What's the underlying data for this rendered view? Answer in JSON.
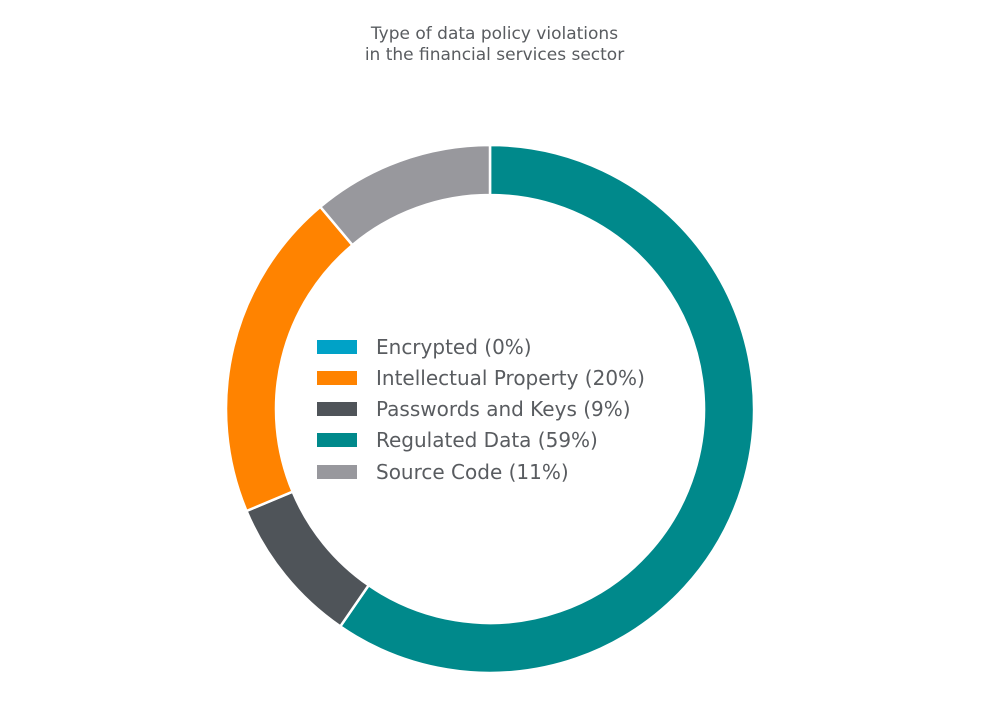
{
  "chart_data": {
    "type": "pie",
    "variant": "donut",
    "title_lines": [
      "Type of data policy violations",
      "in the financial services sector"
    ],
    "start_angle": "top, clockwise",
    "legend_position": "center",
    "slices": [
      {
        "label": "Encrypted (0%)",
        "value": 0,
        "color": "#00a2c7"
      },
      {
        "label": "Intellectual Property (20%)",
        "value": 20,
        "color": "#ff8300"
      },
      {
        "label": "Passwords and Keys (9%)",
        "value": 9,
        "color": "#4f5459"
      },
      {
        "label": "Regulated Data (59%)",
        "value": 59,
        "color": "#00898b"
      },
      {
        "label": "Source Code (11%)",
        "value": 11,
        "color": "#98989d"
      }
    ],
    "draw_order": [
      3,
      0,
      2,
      1,
      4
    ]
  }
}
